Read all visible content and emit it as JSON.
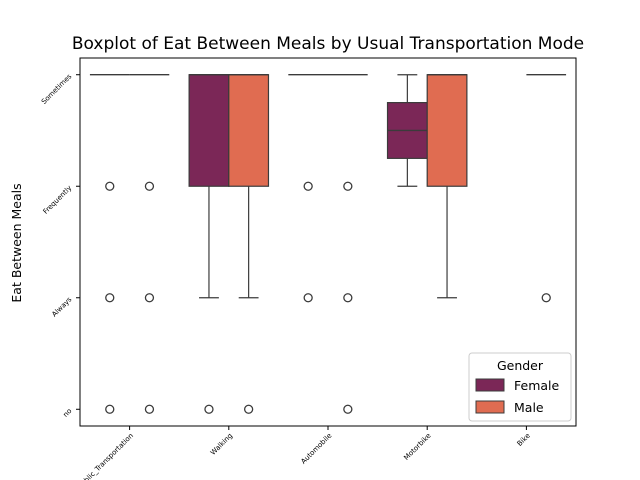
{
  "chart_data": {
    "type": "boxplot",
    "title": "Boxplot of Eat Between Meals by Usual Transportation Mode",
    "xlabel": "",
    "ylabel": "Eat Between Meals",
    "categories": [
      "Public_Transportation",
      "Walking",
      "Automobile",
      "Motorbike",
      "Bike"
    ],
    "y_levels": [
      "Sometimes",
      "Frequently",
      "Always",
      "no"
    ],
    "y_codes": [
      0,
      1,
      2,
      3
    ],
    "ylim": [
      -0.15,
      3.15
    ],
    "grid": false,
    "legend": {
      "title": "Gender",
      "placement": "lower-right",
      "entries": [
        {
          "name": "Female",
          "color": "#7b2757"
        },
        {
          "name": "Male",
          "color": "#e06c51"
        }
      ]
    },
    "series": [
      {
        "name": "Female",
        "color": "#7b2757",
        "boxes": [
          {
            "q1": 0,
            "median": 0,
            "q3": 0,
            "whisker_low": 0,
            "whisker_high": 0,
            "outliers": [
              1,
              2,
              3
            ]
          },
          {
            "q1": 0,
            "median": 0,
            "q3": 1,
            "whisker_low": 0,
            "whisker_high": 2,
            "outliers": [
              3
            ]
          },
          {
            "q1": 0,
            "median": 0,
            "q3": 0,
            "whisker_low": 0,
            "whisker_high": 0,
            "outliers": [
              1,
              2
            ]
          },
          {
            "q1": 0.25,
            "median": 0.5,
            "q3": 0.75,
            "whisker_low": 0,
            "whisker_high": 1,
            "outliers": []
          },
          null
        ]
      },
      {
        "name": "Male",
        "color": "#e06c51",
        "boxes": [
          {
            "q1": 0,
            "median": 0,
            "q3": 0,
            "whisker_low": 0,
            "whisker_high": 0,
            "outliers": [
              1,
              2,
              3
            ]
          },
          {
            "q1": 0,
            "median": 0,
            "q3": 1,
            "whisker_low": 0,
            "whisker_high": 2,
            "outliers": [
              3
            ]
          },
          {
            "q1": 0,
            "median": 0,
            "q3": 0,
            "whisker_low": 0,
            "whisker_high": 0,
            "outliers": [
              1,
              2,
              3
            ]
          },
          {
            "q1": 0,
            "median": 0,
            "q3": 1,
            "whisker_low": 0,
            "whisker_high": 2,
            "outliers": []
          },
          {
            "q1": 0,
            "median": 0,
            "q3": 0,
            "whisker_low": 0,
            "whisker_high": 0,
            "outliers": [
              2
            ]
          }
        ]
      }
    ]
  }
}
